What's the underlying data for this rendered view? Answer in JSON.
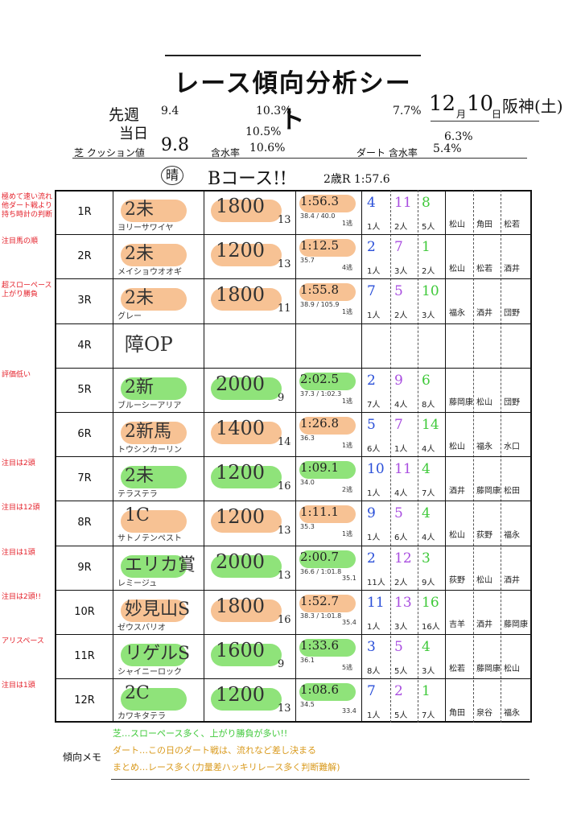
{
  "title": "レース傾向分析シート",
  "header": {
    "date_value": "12",
    "month_label": "月",
    "day_value": "10",
    "day_label": "日",
    "venue": "阪神(土)",
    "prev_week_label": "先週",
    "prev_cushion": "9.4",
    "prev_moisture": "10.3%",
    "prev_dirt": "7.7%",
    "today_label": "当日",
    "cushion_label": "芝  クッション値",
    "cushion_value": "9.8",
    "moisture_label": "含水率",
    "moisture_values": [
      "10.5%",
      "10.6%"
    ],
    "dirt_label": "ダート  含水率",
    "dirt_values": [
      "6.3%",
      "5.4%"
    ],
    "note_kanji": "晴",
    "note_text": "Bコース!!",
    "two_year_record": "2歳R 1:57.6"
  },
  "colors": {
    "orange": "#f7c294",
    "green": "#8fe37a",
    "red": "#e4202a",
    "blue": "#2a4fd8",
    "purple": "#a94ee0",
    "lime": "#3fc93a",
    "gold": "#d99a1d",
    "pink": "#e0389a"
  },
  "races": [
    {
      "race": "1R",
      "class": "2未",
      "horse": "ヨリーサワイヤ",
      "surface": "ダート",
      "distance": "1800",
      "field": "13",
      "time": "1:56.3",
      "lap": "38.4 / 40.0",
      "note": "1逃",
      "pos": [
        "4",
        "11",
        "8"
      ],
      "pop": [
        "1人",
        "2人",
        "5人"
      ],
      "jockey": [
        "松山",
        "角田",
        "松若"
      ],
      "left_note": "極めて速い流れ 他ダート戦より 持ち時計の判断",
      "color": "orange"
    },
    {
      "race": "2R",
      "class": "2未",
      "horse": "メイショウオオギ",
      "surface": "ダート",
      "distance": "1200",
      "field": "13",
      "time": "1:12.5",
      "lap": "35.7",
      "note": "4逃",
      "pos": [
        "2",
        "7",
        "1"
      ],
      "pop": [
        "1人",
        "3人",
        "2人"
      ],
      "jockey": [
        "松山",
        "松若",
        "酒井"
      ],
      "left_note": "注目馬の順",
      "color": "orange"
    },
    {
      "race": "3R",
      "class": "2未",
      "horse": "グレー",
      "surface": "ダート",
      "distance": "1800",
      "field": "11",
      "time": "1:55.8",
      "lap": "38.9 / 105.9",
      "note": "1逃",
      "pos": [
        "7",
        "5",
        "10"
      ],
      "pop": [
        "1人",
        "2人",
        "3人"
      ],
      "jockey": [
        "福永",
        "酒井",
        "団野"
      ],
      "left_note": "超スローペース 上がり勝負",
      "color": "orange"
    },
    {
      "race": "4R",
      "class": "障OP",
      "horse": "",
      "surface": "",
      "distance": "",
      "field": "",
      "time": "",
      "lap": "",
      "note": "",
      "pos": [
        "",
        "",
        ""
      ],
      "pop": [
        "",
        "",
        ""
      ],
      "jockey": [
        "",
        "",
        ""
      ],
      "left_note": "",
      "color": "none"
    },
    {
      "race": "5R",
      "class": "2新",
      "horse": "ブルーシーアリア",
      "surface": "芝",
      "distance": "2000",
      "field": "9",
      "time": "2:02.5",
      "lap": "37.3 / 1:02.3",
      "note": "1逃",
      "pos": [
        "2",
        "9",
        "6"
      ],
      "pop": [
        "7人",
        "4人",
        "8人"
      ],
      "jockey": [
        "藤岡康",
        "松山",
        "団野"
      ],
      "left_note": "評価低い",
      "color": "green"
    },
    {
      "race": "6R",
      "class": "2新馬",
      "horse": "トウシンカーリン",
      "surface": "ダート",
      "distance": "1400",
      "field": "14",
      "time": "1:26.8",
      "lap": "36.3",
      "note": "1逃",
      "pos": [
        "5",
        "7",
        "14"
      ],
      "pop": [
        "6人",
        "1人",
        "4人"
      ],
      "jockey": [
        "松山",
        "福永",
        "水口"
      ],
      "left_note": "",
      "color": "orange"
    },
    {
      "race": "7R",
      "class": "2未",
      "horse": "テラステラ",
      "surface": "芝",
      "distance": "1200",
      "field": "16",
      "time": "1:09.1",
      "lap": "34.0",
      "note": "2逃",
      "pos": [
        "10",
        "11",
        "4"
      ],
      "pop": [
        "1人",
        "4人",
        "7人"
      ],
      "jockey": [
        "酒井",
        "藤岡康",
        "松田"
      ],
      "left_note": "注目は2頭",
      "color": "green"
    },
    {
      "race": "8R",
      "class": "1C",
      "horse": "サトノテンペスト",
      "surface": "ダート",
      "distance": "1200",
      "field": "13",
      "time": "1:11.1",
      "lap": "35.3",
      "note": "1逃",
      "pos": [
        "9",
        "5",
        "4"
      ],
      "pop": [
        "1人",
        "6人",
        "4人"
      ],
      "jockey": [
        "松山",
        "荻野",
        "福永"
      ],
      "left_note": "注目は12頭",
      "color": "orange"
    },
    {
      "race": "9R",
      "class": "エリカ賞",
      "horse": "レミージュ",
      "surface": "芝",
      "distance": "2000",
      "field": "13",
      "time": "2:00.7",
      "lap": "36.6 / 1:01.8",
      "note": "35.1",
      "pos": [
        "2",
        "12",
        "3"
      ],
      "pop": [
        "11人",
        "2人",
        "9人"
      ],
      "jockey": [
        "荻野",
        "松山",
        "酒井"
      ],
      "left_note": "注目は1頭",
      "color": "green"
    },
    {
      "race": "10R",
      "class": "妙見山S",
      "horse": "ゼウスバリオ",
      "surface": "ダート",
      "distance": "1800",
      "field": "16",
      "time": "1:52.7",
      "lap": "38.3 / 1:01.8",
      "note": "35.4",
      "pos": [
        "11",
        "13",
        "16"
      ],
      "pop": [
        "1人",
        "3人",
        "16人"
      ],
      "jockey": [
        "吉羊",
        "酒井",
        "藤岡康"
      ],
      "left_note": "注目は2頭!!",
      "color": "orange"
    },
    {
      "race": "11R",
      "class": "リゲルS",
      "horse": "シャイニーロック",
      "surface": "芝",
      "distance": "1600",
      "field": "9",
      "time": "1:33.6",
      "lap": "36.1",
      "note": "5逃",
      "pos": [
        "3",
        "5",
        "4"
      ],
      "pop": [
        "8人",
        "5人",
        "3人"
      ],
      "jockey": [
        "松若",
        "藤岡康",
        "松山"
      ],
      "left_note": "アリスペース",
      "color": "green"
    },
    {
      "race": "12R",
      "class": "2C",
      "horse": "カワキタテラ",
      "surface": "芝",
      "distance": "1200",
      "field": "13",
      "time": "1:08.6",
      "lap": "34.5",
      "note": "33.4",
      "pos": [
        "7",
        "2",
        "1"
      ],
      "pop": [
        "1人",
        "5人",
        "7人"
      ],
      "jockey": [
        "角田",
        "泉谷",
        "福永"
      ],
      "left_note": "注目は1頭",
      "color": "green"
    }
  ],
  "memo_label": "傾向メモ",
  "memo_lines": [
    "芝…スローペース多く、上がり勝負が多い!!",
    "ダート…この日のダート戦は、流れなど差し決まる",
    "まとめ…レース多く(力量差ハッキリレース多く判断難解)"
  ]
}
